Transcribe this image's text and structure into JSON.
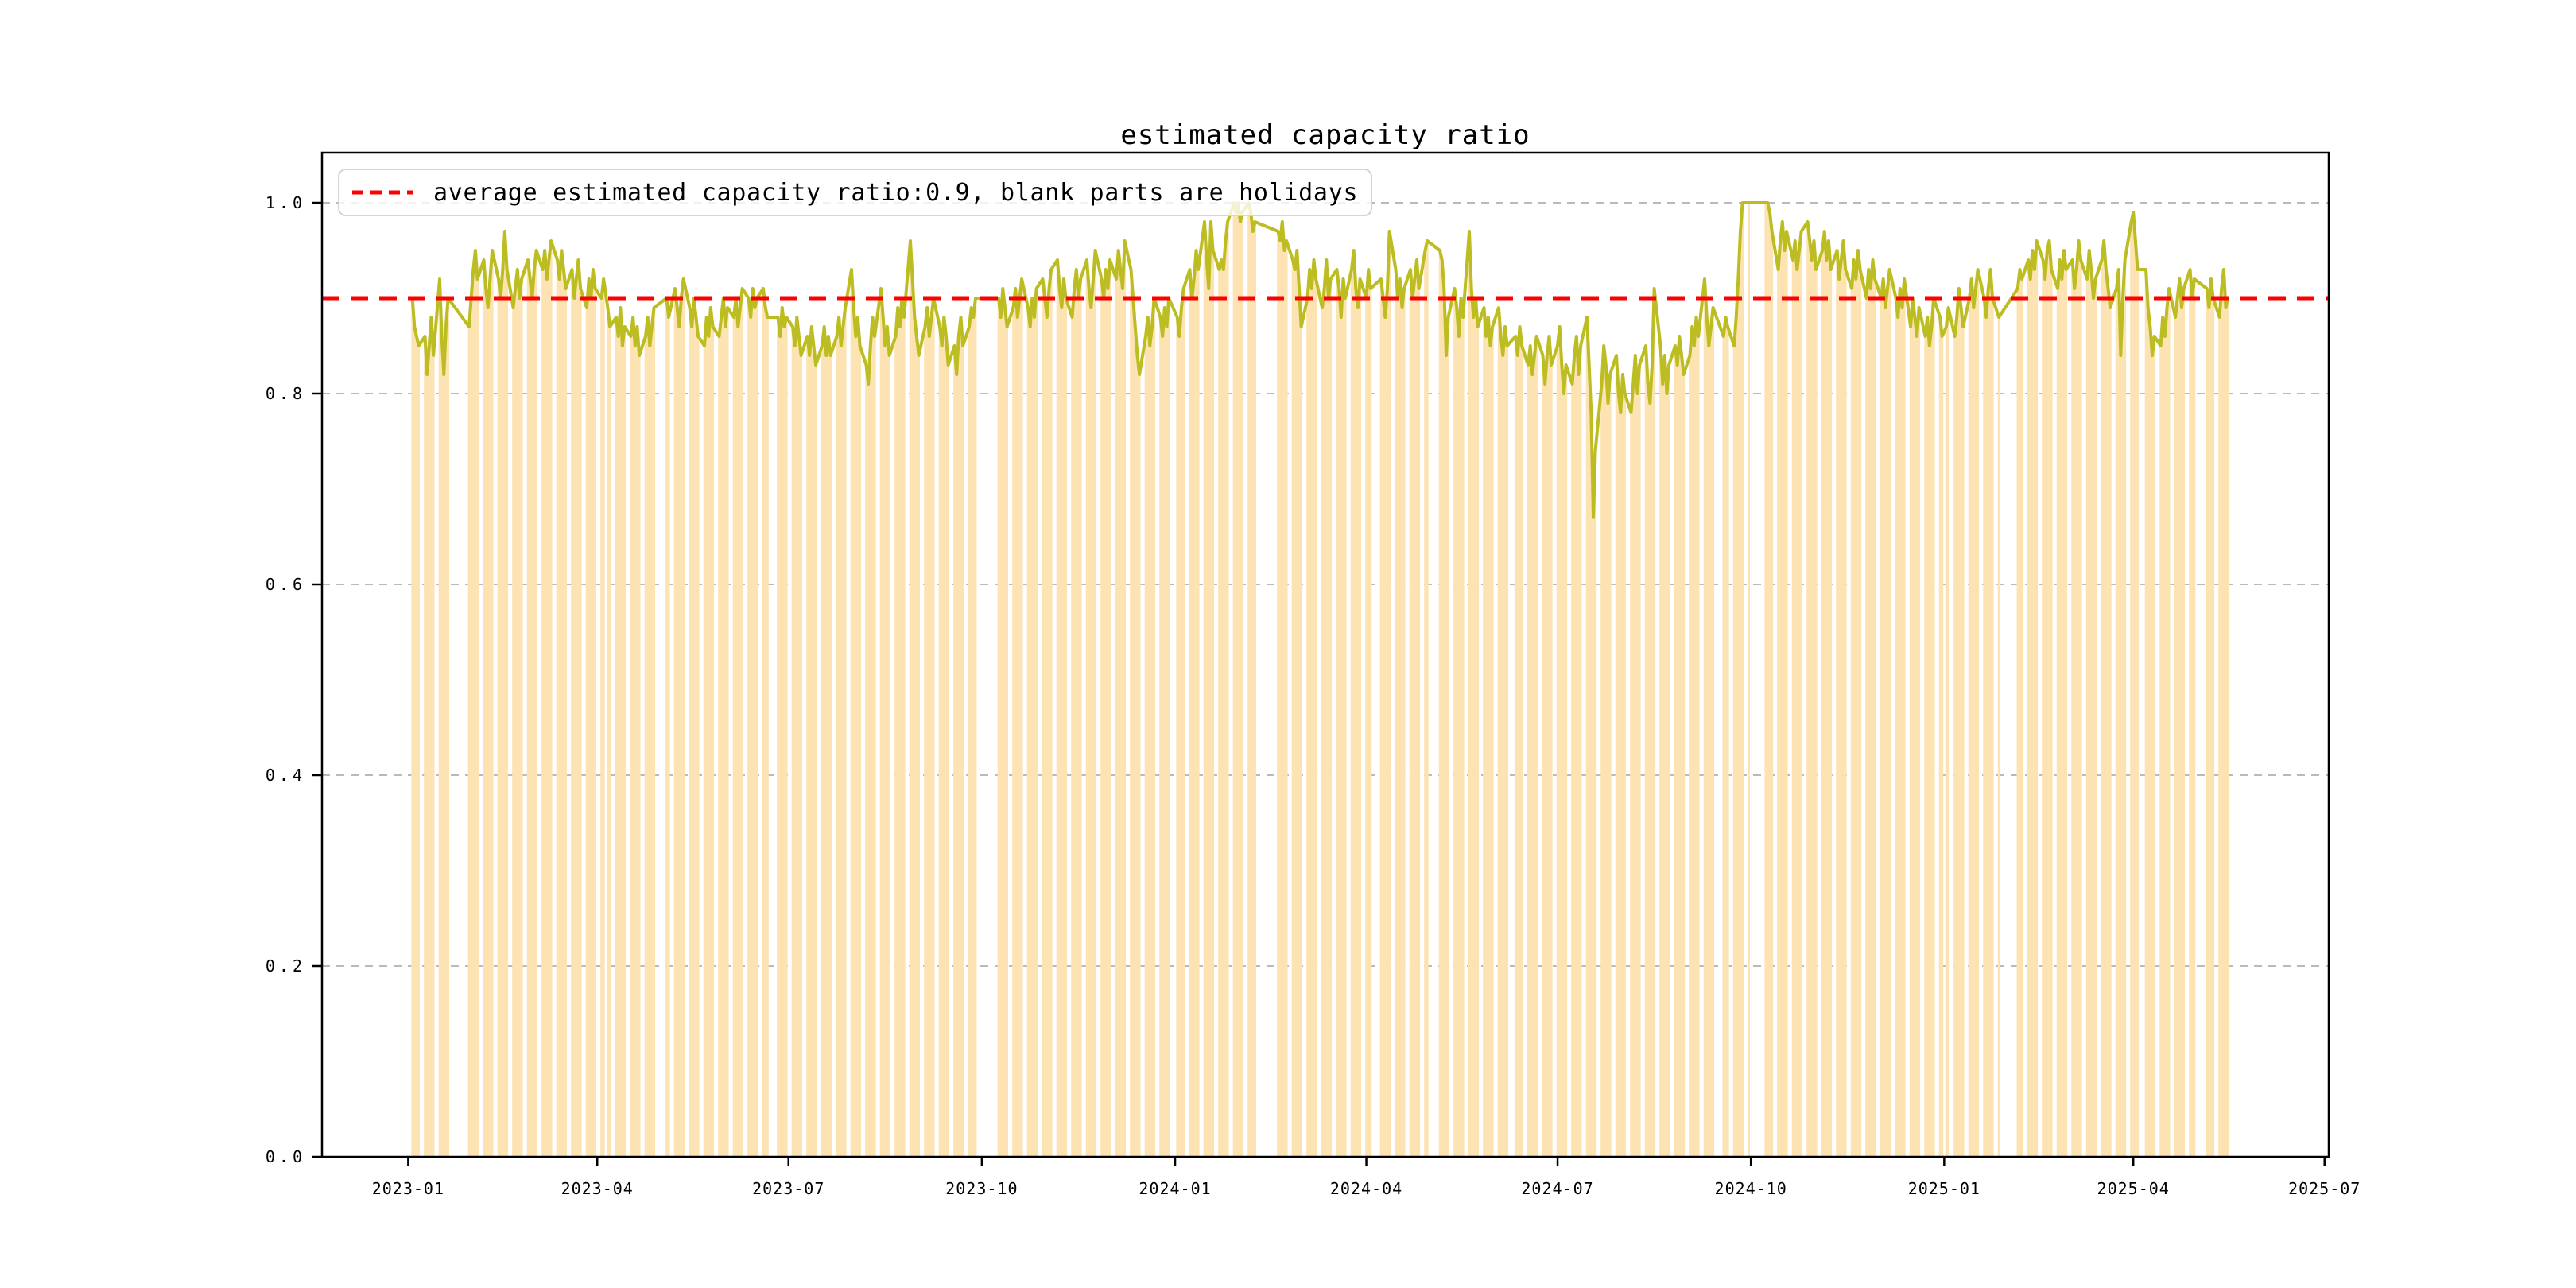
{
  "chart_data": {
    "type": "bar+line",
    "title": "estimated capacity ratio",
    "legend": {
      "entries": [
        {
          "label": "average estimated capacity ratio:0.9, blank parts are holidays",
          "marker": "red-dashed-line"
        }
      ],
      "position": "upper-left"
    },
    "average_line": {
      "value": 0.9,
      "style": "dashed"
    },
    "xlabel": "",
    "ylabel": "",
    "ylim": [
      0.0,
      1.0525
    ],
    "xlim": [
      "2022-11-21",
      "2025-07-03"
    ],
    "grid": {
      "horizontal": true,
      "style": "dashed"
    },
    "y_ticks": [
      {
        "value": 0.0,
        "label": "0.0"
      },
      {
        "value": 0.2,
        "label": "0.2"
      },
      {
        "value": 0.4,
        "label": "0.4"
      },
      {
        "value": 0.6,
        "label": "0.6"
      },
      {
        "value": 0.8,
        "label": "0.8"
      },
      {
        "value": 1.0,
        "label": "1.0"
      }
    ],
    "x_ticks": [
      {
        "date": "2023-01-01",
        "label": "2023-01"
      },
      {
        "date": "2023-04-01",
        "label": "2023-04"
      },
      {
        "date": "2023-07-01",
        "label": "2023-07"
      },
      {
        "date": "2023-10-01",
        "label": "2023-10"
      },
      {
        "date": "2024-01-01",
        "label": "2024-01"
      },
      {
        "date": "2024-04-01",
        "label": "2024-04"
      },
      {
        "date": "2024-07-01",
        "label": "2024-07"
      },
      {
        "date": "2024-10-01",
        "label": "2024-10"
      },
      {
        "date": "2025-01-01",
        "label": "2025-01"
      },
      {
        "date": "2025-04-01",
        "label": "2025-04"
      },
      {
        "date": "2025-07-01",
        "label": "2025-07"
      }
    ],
    "colors": {
      "bar": "#FDE2B2",
      "line": "#BCBD22",
      "average": "#FF0000",
      "grid": "#B0B0B0",
      "axis": "#000000",
      "legend_border": "#D5D5D5"
    },
    "series_note": "daily estimated capacity ratio on workdays (Mon-Fri); gaps between segments are holidays, weekly thin gaps are weekends",
    "segments": [
      {
        "start": "2023-01-03",
        "values": [
          0.9,
          0.87,
          0.86,
          0.85,
          0.86,
          0.82,
          0.85,
          0.88,
          0.84,
          0.92,
          0.86,
          0.82,
          0.87,
          0.9
        ]
      },
      {
        "start": "2023-01-30",
        "values": [
          0.87,
          0.9,
          0.93,
          0.95,
          0.92,
          0.94,
          0.91,
          0.89,
          0.92,
          0.95,
          0.92,
          0.9,
          0.93,
          0.97,
          0.93,
          0.89,
          0.91,
          0.93,
          0.9,
          0.92,
          0.94,
          0.92,
          0.9,
          0.93,
          0.95,
          0.93,
          0.95,
          0.92,
          0.94,
          0.96,
          0.94,
          0.92,
          0.95,
          0.93,
          0.91,
          0.93,
          0.9,
          0.92,
          0.94,
          0.91,
          0.89,
          0.92,
          0.9,
          0.93,
          0.91,
          0.9,
          0.92
        ]
      },
      {
        "start": "2023-04-06",
        "values": [
          0.89,
          0.87,
          0.88,
          0.86,
          0.89,
          0.85,
          0.87,
          0.86,
          0.88,
          0.85,
          0.87,
          0.84,
          0.86,
          0.88,
          0.85,
          0.87,
          0.89
        ]
      },
      {
        "start": "2023-05-04",
        "values": [
          0.9,
          0.88,
          0.91,
          0.89,
          0.87,
          0.9,
          0.92,
          0.89,
          0.87,
          0.9,
          0.88,
          0.86,
          0.85,
          0.88,
          0.86,
          0.89,
          0.87,
          0.86,
          0.88,
          0.9,
          0.87,
          0.89,
          0.88,
          0.9,
          0.87,
          0.89,
          0.91,
          0.9,
          0.88,
          0.91,
          0.89,
          0.9,
          0.91,
          0.89,
          0.88
        ]
      },
      {
        "start": "2023-06-26",
        "values": [
          0.88,
          0.86,
          0.89,
          0.87,
          0.88,
          0.87,
          0.85,
          0.88,
          0.86,
          0.84,
          0.86,
          0.84,
          0.87,
          0.85,
          0.83,
          0.85,
          0.87,
          0.84,
          0.86,
          0.84,
          0.86,
          0.88,
          0.85,
          0.87,
          0.89,
          0.93,
          0.89,
          0.86,
          0.88,
          0.85,
          0.83,
          0.81,
          0.85,
          0.88,
          0.86,
          0.91,
          0.88,
          0.85,
          0.87,
          0.84,
          0.86,
          0.89,
          0.87,
          0.9,
          0.88,
          0.96,
          0.92,
          0.88,
          0.86,
          0.84,
          0.87,
          0.89,
          0.86,
          0.88,
          0.9,
          0.87,
          0.85,
          0.88,
          0.86,
          0.83,
          0.85,
          0.82,
          0.86,
          0.88,
          0.85,
          0.87,
          0.89,
          0.88,
          0.9
        ]
      },
      {
        "start": "2023-10-09",
        "values": [
          0.9,
          0.88,
          0.91,
          0.89,
          0.87,
          0.89,
          0.91,
          0.88,
          0.9,
          0.92,
          0.89,
          0.87,
          0.9,
          0.88,
          0.91,
          0.92,
          0.9,
          0.88,
          0.91,
          0.93,
          0.94,
          0.91,
          0.89,
          0.92,
          0.9,
          0.88,
          0.91,
          0.93,
          0.9,
          0.92,
          0.94,
          0.91,
          0.89,
          0.92,
          0.95,
          0.92,
          0.9,
          0.93,
          0.91,
          0.94,
          0.92,
          0.95,
          0.93,
          0.91,
          0.96,
          0.93,
          0.9,
          0.87,
          0.84,
          0.82,
          0.86,
          0.88,
          0.85,
          0.87,
          0.9,
          0.88,
          0.86,
          0.89,
          0.87,
          0.9
        ]
      },
      {
        "start": "2024-01-02",
        "values": [
          0.88,
          0.86,
          0.89,
          0.91,
          0.93,
          0.9,
          0.92,
          0.95,
          0.93,
          0.98,
          0.94,
          0.91,
          0.98,
          0.95,
          0.93,
          0.94,
          0.93,
          0.96,
          0.98,
          1.0,
          0.99,
          1.0,
          0.98,
          0.99,
          1.0,
          0.99,
          0.97,
          0.98
        ]
      },
      {
        "start": "2024-02-19",
        "values": [
          0.97,
          0.96,
          0.98,
          0.95,
          0.96,
          0.94,
          0.93,
          0.95,
          0.91,
          0.87,
          0.9,
          0.93,
          0.91,
          0.94,
          0.92,
          0.89,
          0.91,
          0.94,
          0.9,
          0.92,
          0.93,
          0.91,
          0.88,
          0.92,
          0.9,
          0.93,
          0.95,
          0.91,
          0.89,
          0.92,
          0.9,
          0.93,
          0.91
        ]
      },
      {
        "start": "2024-04-08",
        "values": [
          0.92,
          0.9,
          0.88,
          0.91,
          0.97,
          0.93,
          0.9,
          0.92,
          0.89,
          0.91,
          0.93,
          0.9,
          0.92,
          0.94,
          0.91,
          0.95,
          0.96
        ]
      },
      {
        "start": "2024-05-06",
        "values": [
          0.95,
          0.94,
          0.91,
          0.84,
          0.88,
          0.91,
          0.89,
          0.86,
          0.9,
          0.88,
          0.97,
          0.91,
          0.88,
          0.9,
          0.87,
          0.89,
          0.86,
          0.88,
          0.85,
          0.87,
          0.89,
          0.86,
          0.84,
          0.87,
          0.85
        ]
      },
      {
        "start": "2024-06-11",
        "values": [
          0.86,
          0.84,
          0.87,
          0.85,
          0.83,
          0.85,
          0.82,
          0.84,
          0.86,
          0.84,
          0.81,
          0.84,
          0.86,
          0.83,
          0.85,
          0.87,
          0.83,
          0.8,
          0.83,
          0.81,
          0.84,
          0.86,
          0.82,
          0.85,
          0.88,
          0.83,
          0.78,
          0.67,
          0.74,
          0.81,
          0.85,
          0.83,
          0.79,
          0.82,
          0.84,
          0.8,
          0.78,
          0.82,
          0.8,
          0.78,
          0.81,
          0.84,
          0.8,
          0.83,
          0.85,
          0.81,
          0.79,
          0.83,
          0.91,
          0.85,
          0.81,
          0.84,
          0.8,
          0.83,
          0.85,
          0.83,
          0.86,
          0.84,
          0.82,
          0.84,
          0.87,
          0.85,
          0.88,
          0.86,
          0.92,
          0.88,
          0.85,
          0.87,
          0.89
        ]
      },
      {
        "start": "2024-09-18",
        "values": [
          0.86,
          0.88,
          0.87,
          0.85,
          0.88,
          0.92,
          0.97,
          1.0,
          1.0
        ]
      },
      {
        "start": "2024-10-08",
        "values": [
          1.0,
          1.0,
          0.99,
          0.97,
          0.93,
          0.96,
          0.98,
          0.95,
          0.97,
          0.94,
          0.96,
          0.93,
          0.95,
          0.97,
          0.98,
          0.96,
          0.94,
          0.96,
          0.93,
          0.95,
          0.97,
          0.94,
          0.96,
          0.93,
          0.95,
          0.92,
          0.94,
          0.96,
          0.93,
          0.91,
          0.94,
          0.92,
          0.95,
          0.93,
          0.9,
          0.93,
          0.91,
          0.94,
          0.92,
          0.9,
          0.92,
          0.89,
          0.91,
          0.93,
          0.9,
          0.88,
          0.91,
          0.89,
          0.92,
          0.87,
          0.9,
          0.88,
          0.86,
          0.89,
          0.86,
          0.88,
          0.85,
          0.87,
          0.9,
          0.88,
          0.86
        ]
      },
      {
        "start": "2025-01-02",
        "values": [
          0.87,
          0.89,
          0.86,
          0.88,
          0.91,
          0.89,
          0.87,
          0.9,
          0.92,
          0.89,
          0.91,
          0.93,
          0.9,
          0.88,
          0.91,
          0.93,
          0.9,
          0.88
        ]
      },
      {
        "start": "2025-02-05",
        "values": [
          0.91,
          0.93,
          0.92,
          0.94,
          0.92,
          0.95,
          0.93,
          0.96,
          0.94,
          0.92,
          0.95,
          0.96,
          0.93,
          0.91,
          0.94,
          0.92,
          0.95,
          0.93,
          0.94,
          0.91,
          0.93,
          0.96,
          0.94,
          0.92,
          0.95,
          0.93,
          0.9,
          0.92,
          0.94,
          0.96,
          0.93,
          0.91,
          0.89,
          0.91,
          0.93,
          0.84,
          0.9,
          0.94,
          0.98,
          0.99,
          0.96,
          0.93
        ]
      },
      {
        "start": "2025-04-07",
        "values": [
          0.93,
          0.89,
          0.87,
          0.84,
          0.86,
          0.85,
          0.88,
          0.86,
          0.89,
          0.91,
          0.88,
          0.9,
          0.92,
          0.89,
          0.91,
          0.93,
          0.9,
          0.92
        ]
      },
      {
        "start": "2025-05-06",
        "values": [
          0.91,
          0.89,
          0.92,
          0.9,
          0.88,
          0.91,
          0.93,
          0.89,
          0.9
        ]
      }
    ]
  }
}
